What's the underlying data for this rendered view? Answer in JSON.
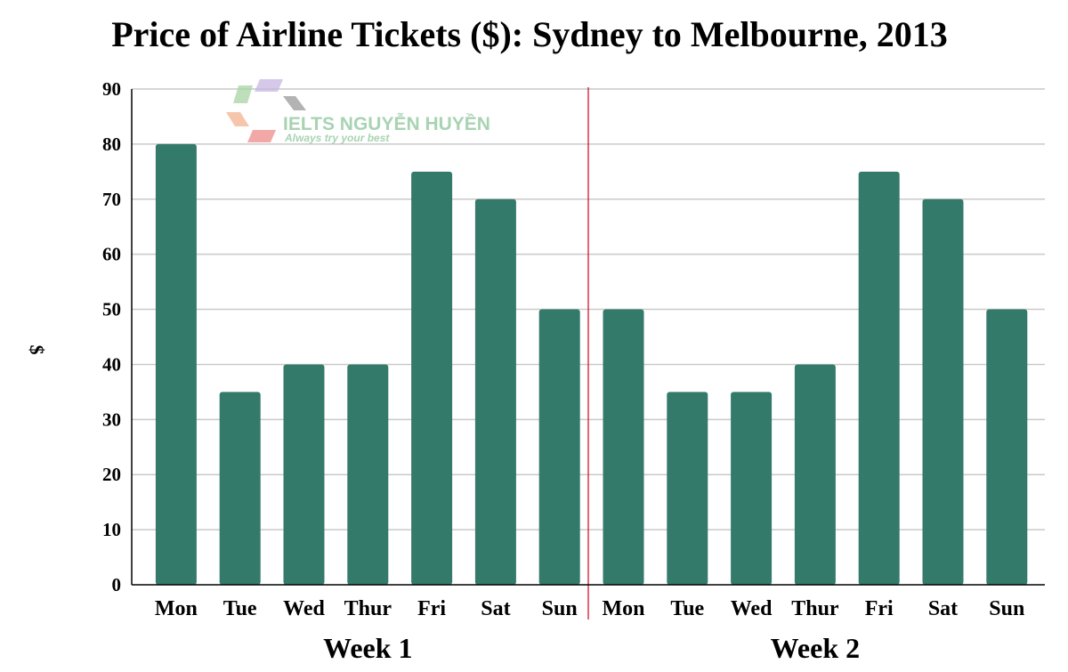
{
  "watermark": {
    "name": "IELTS NGUYỄN HUYỀN",
    "tagline": "Always try your best"
  },
  "colors": {
    "bar": "#347a6b",
    "grid": "#c9c9c9",
    "axis": "#000000",
    "divider": "#d0021b"
  },
  "chart_data": {
    "type": "bar",
    "title": "Price of Airline Tickets ($): Sydney to Melbourne, 2013",
    "ylabel": "$",
    "xlabel": "",
    "ylim": [
      0,
      90
    ],
    "yticks": [
      0,
      10,
      20,
      30,
      40,
      50,
      60,
      70,
      80,
      90
    ],
    "grid": true,
    "legend": "none",
    "groups": [
      {
        "label": "Week 1",
        "categories": [
          "Mon",
          "Tue",
          "Wed",
          "Thur",
          "Fri",
          "Sat",
          "Sun"
        ],
        "values": [
          80,
          35,
          40,
          40,
          75,
          70,
          50
        ]
      },
      {
        "label": "Week 2",
        "categories": [
          "Mon",
          "Tue",
          "Wed",
          "Thur",
          "Fri",
          "Sat",
          "Sun"
        ],
        "values": [
          50,
          35,
          35,
          40,
          75,
          70,
          50
        ]
      }
    ]
  }
}
